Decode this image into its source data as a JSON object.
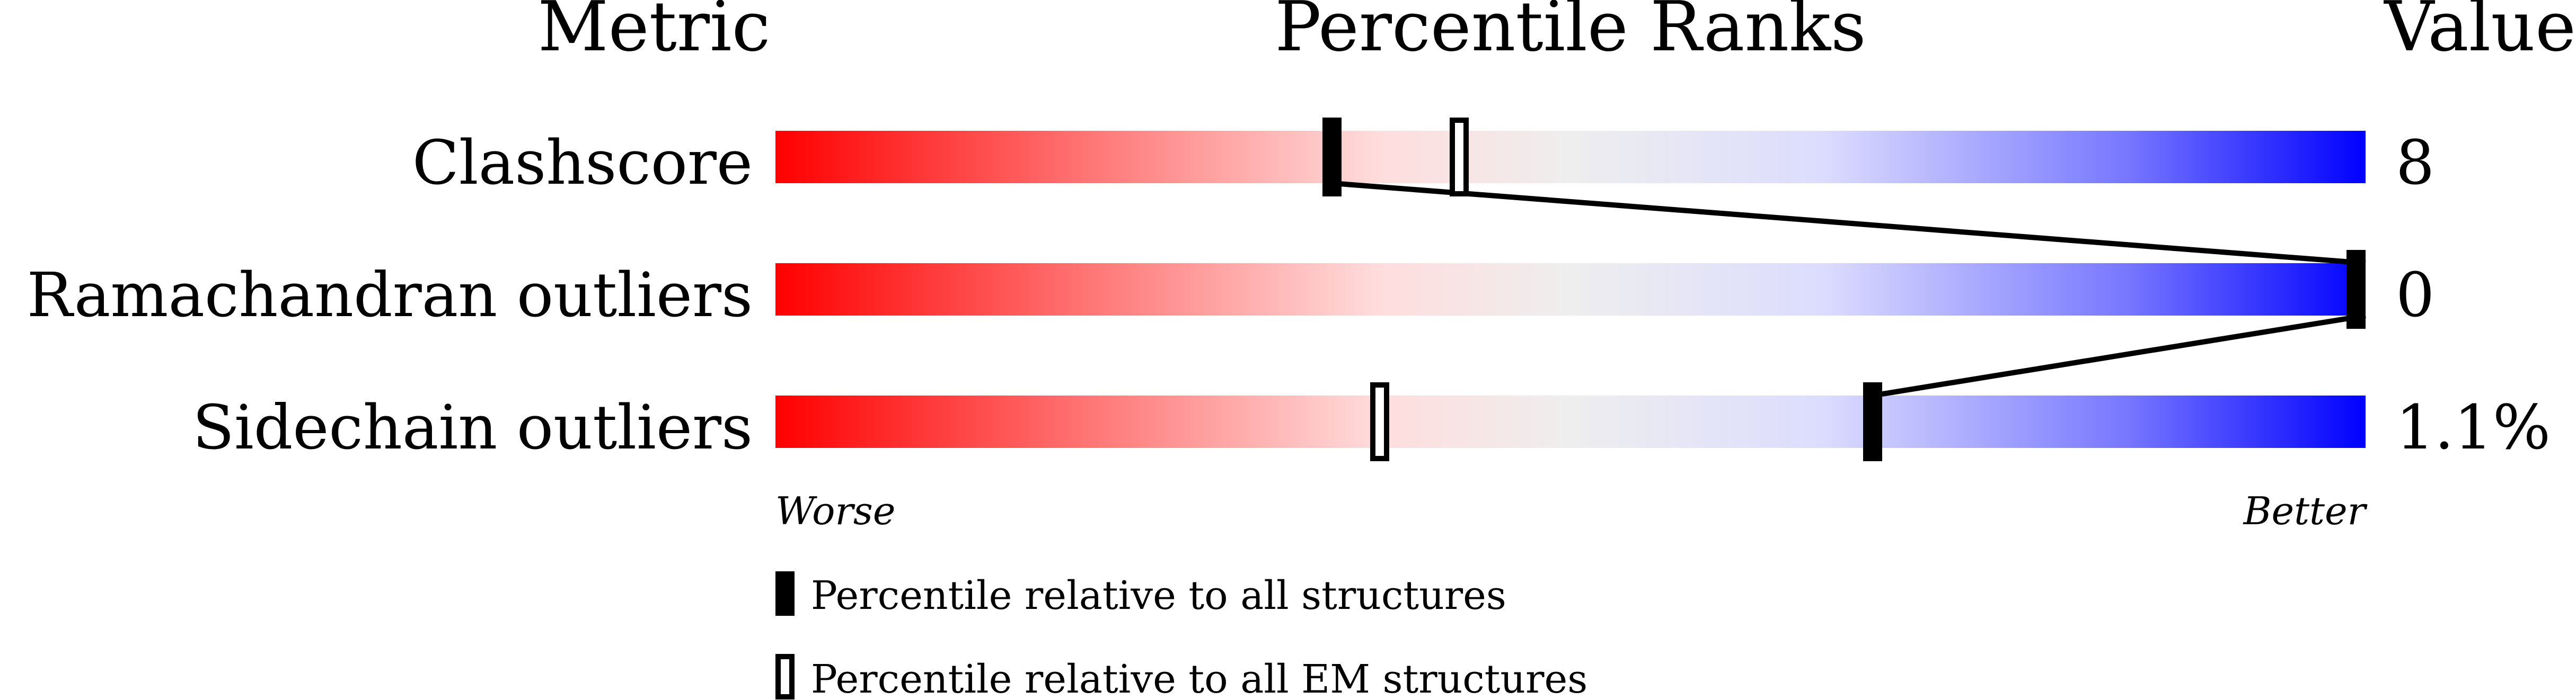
{
  "chart_data": {
    "type": "bar",
    "headers": {
      "metric": "Metric",
      "ranks": "Percentile Ranks",
      "value": "Value"
    },
    "xlim": [
      0,
      100
    ],
    "gradient_colors": [
      "#ff0000",
      "#ffdddd",
      "#eeeeee",
      "#dcdcff",
      "#0000ff"
    ],
    "metrics": [
      {
        "name": "Clashscore",
        "value": "8",
        "percentile_all": 35,
        "percentile_em": 43
      },
      {
        "name": "Ramachandran outliers",
        "value": "0",
        "percentile_all": 100,
        "percentile_em": 100
      },
      {
        "name": "Sidechain outliers",
        "value": "1.1%",
        "percentile_all": 69,
        "percentile_em": 38
      }
    ],
    "axis": {
      "worse": "Worse",
      "better": "Better"
    },
    "legend": {
      "all": "Percentile relative to all structures",
      "em": "Percentile relative to all EM structures"
    }
  }
}
